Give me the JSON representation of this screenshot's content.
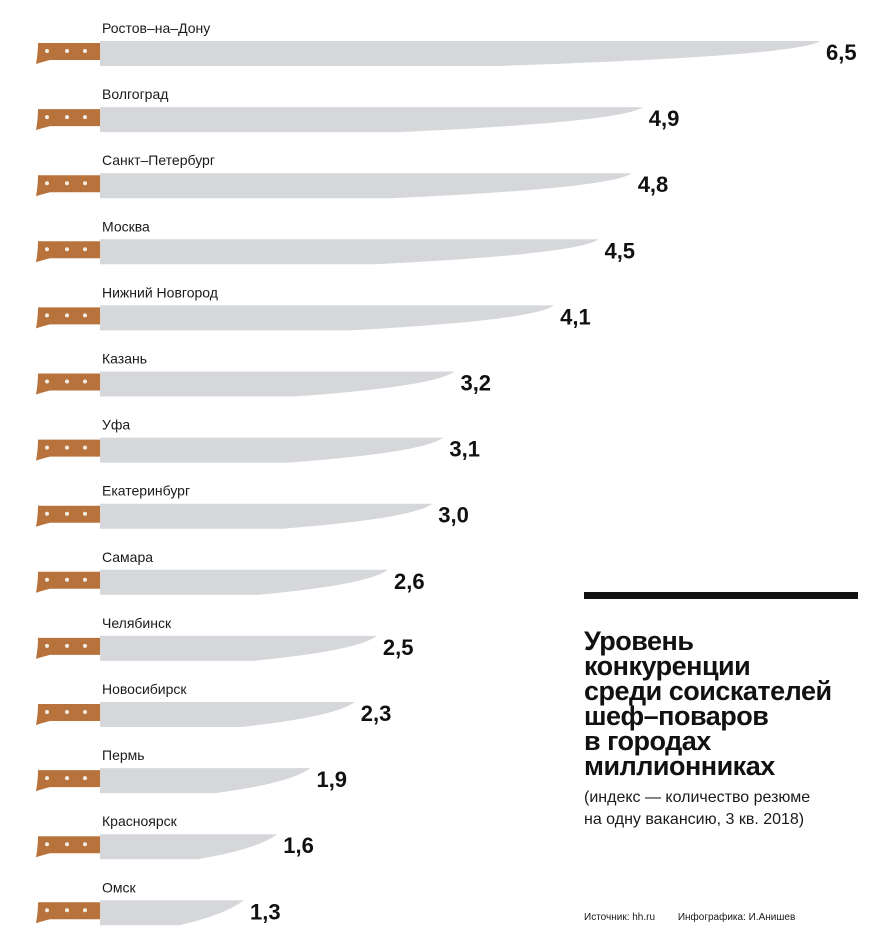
{
  "chart_data": {
    "type": "bar",
    "title": "Уровень\nконкуренции\nсреди соискателей\nшеф–поваров\nв городах\nмиллионниках",
    "subtitle": "(индекс — количество резюме\nна одну вакансию, 3 кв. 2018)",
    "categories": [
      "Ростов–на–Дону",
      "Волгоград",
      "Санкт–Петербург",
      "Москва",
      "Нижний Новгород",
      "Казань",
      "Уфа",
      "Екатеринбург",
      "Самара",
      "Челябинск",
      "Новосибирск",
      "Пермь",
      "Красноярск",
      "Омск"
    ],
    "value_labels": [
      "6,5",
      "4,9",
      "4,8",
      "4,5",
      "4,1",
      "3,2",
      "3,1",
      "3,0",
      "2,6",
      "2,5",
      "2,3",
      "1,9",
      "1,6",
      "1,3"
    ],
    "values": [
      6.5,
      4.9,
      4.8,
      4.5,
      4.1,
      3.2,
      3.1,
      3.0,
      2.6,
      2.5,
      2.3,
      1.9,
      1.6,
      1.3
    ],
    "orientation": "horizontal",
    "mark_style": "knife",
    "colors": {
      "blade": "#d5d7da",
      "blade_edge": "#b8bbbf",
      "handle": "#b8733c",
      "rivet": "#f3ede4"
    }
  },
  "footer": {
    "source": "Источник: hh.ru",
    "credit": "Инфографика: И.Анишев"
  }
}
